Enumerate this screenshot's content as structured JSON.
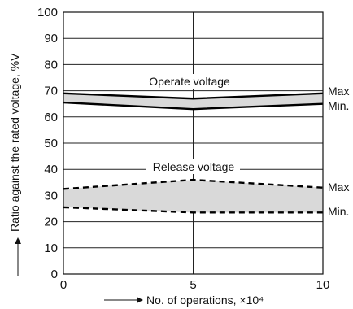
{
  "chart_data": {
    "type": "area",
    "x": [
      0,
      5,
      10
    ],
    "xlim": [
      0,
      10
    ],
    "ylim": [
      0,
      100
    ],
    "x_ticks": [
      "0",
      "5",
      "10"
    ],
    "y_ticks": [
      "0",
      "10",
      "20",
      "30",
      "40",
      "50",
      "60",
      "70",
      "80",
      "90",
      "100"
    ],
    "xlabel": "No. of operations, ×10⁴",
    "ylabel": "Ratio against the rated voltage, %V",
    "grid": true,
    "series": [
      {
        "name": "Operate voltage",
        "style": "solid",
        "max": [
          69,
          67,
          69
        ],
        "min": [
          65.5,
          63,
          65
        ],
        "band_color": "#d9d9d9"
      },
      {
        "name": "Release voltage",
        "style": "dashed",
        "max": [
          32.5,
          36,
          33
        ],
        "min": [
          25.5,
          23.5,
          23.5
        ],
        "band_color": "#d9d9d9"
      }
    ],
    "side_labels": {
      "max": "Max",
      "min": "Min."
    }
  }
}
